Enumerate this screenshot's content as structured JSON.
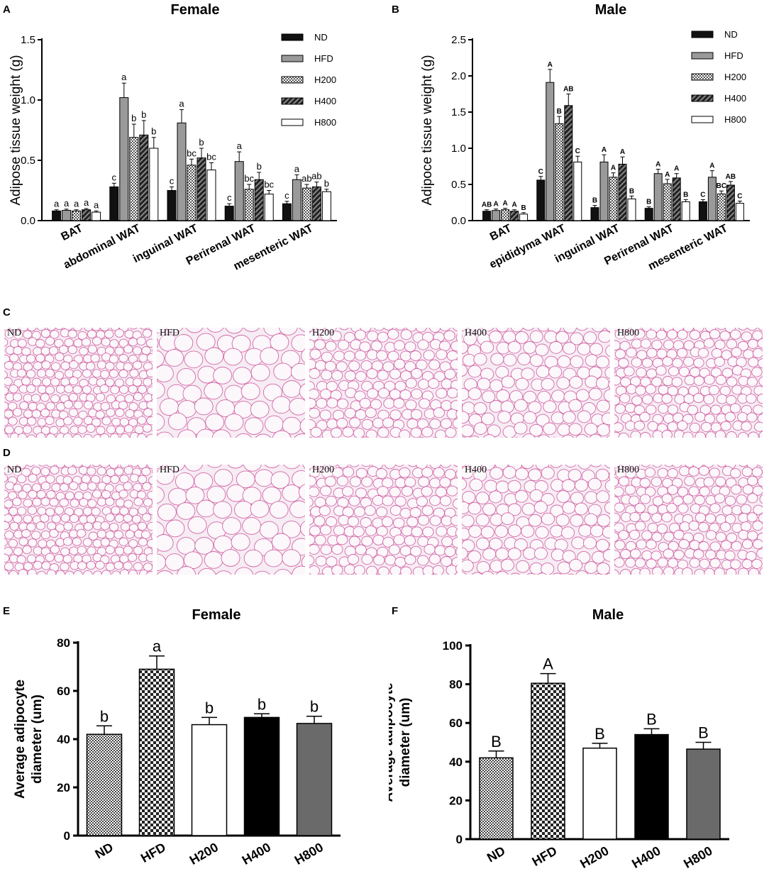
{
  "panels": {
    "A": "A",
    "B": "B",
    "C": "C",
    "D": "D",
    "E": "E",
    "F": "F"
  },
  "colors": {
    "ND": "#111111",
    "HFD": "#9a9a9a",
    "H200": "#7a7a7a",
    "H400": "#333333",
    "H800": "#ffffff",
    "H800_EF": "#6a6a6a",
    "tissue_bg": "#f6ecf4",
    "tissue_stain": "#c83c8c"
  },
  "chart_data": [
    {
      "id": "A",
      "type": "bar",
      "title": "Female",
      "ylabel": "Adipose tissue weight (g)",
      "ylim": [
        0,
        1.5
      ],
      "yticks": [
        "0.0",
        "0.5",
        "1.0",
        "1.5"
      ],
      "categories": [
        "BAT",
        "abdominal WAT",
        "inguinal WAT",
        "Perirenal WAT",
        "mesenteric WAT"
      ],
      "legend": [
        "ND",
        "HFD",
        "H200",
        "H400",
        "H800"
      ],
      "series": [
        {
          "name": "ND",
          "values": [
            0.08,
            0.28,
            0.25,
            0.12,
            0.14
          ],
          "errors": [
            0.01,
            0.03,
            0.03,
            0.02,
            0.02
          ],
          "labels": [
            "a",
            "c",
            "c",
            "c",
            "c"
          ]
        },
        {
          "name": "HFD",
          "values": [
            0.085,
            1.02,
            0.81,
            0.49,
            0.34
          ],
          "errors": [
            0.01,
            0.12,
            0.11,
            0.08,
            0.04
          ],
          "labels": [
            "a",
            "a",
            "a",
            "a",
            "a"
          ]
        },
        {
          "name": "H200",
          "values": [
            0.08,
            0.69,
            0.46,
            0.26,
            0.27
          ],
          "errors": [
            0.01,
            0.11,
            0.05,
            0.04,
            0.03
          ],
          "labels": [
            "a",
            "b",
            "bc",
            "bc",
            "ab"
          ]
        },
        {
          "name": "H400",
          "values": [
            0.09,
            0.71,
            0.52,
            0.34,
            0.28
          ],
          "errors": [
            0.01,
            0.12,
            0.08,
            0.06,
            0.04
          ],
          "labels": [
            "a",
            "b",
            "b",
            "b",
            "ab"
          ]
        },
        {
          "name": "H800",
          "values": [
            0.07,
            0.6,
            0.42,
            0.22,
            0.24
          ],
          "errors": [
            0.01,
            0.09,
            0.06,
            0.03,
            0.02
          ],
          "labels": [
            "a",
            "b",
            "bc",
            "bc",
            "b"
          ]
        }
      ]
    },
    {
      "id": "B",
      "type": "bar",
      "title": "Male",
      "ylabel": "Adipoce tissue weight (g)",
      "ylim": [
        0,
        2.5
      ],
      "yticks": [
        "0.0",
        "0.5",
        "1.0",
        "1.5",
        "2.0",
        "2.5"
      ],
      "categories": [
        "BAT",
        "epididyma WAT",
        "inguinal WAT",
        "Perirenal WAT",
        "mesenteric WAT"
      ],
      "legend": [
        "ND",
        "HFD",
        "H200",
        "H400",
        "H800"
      ],
      "series": [
        {
          "name": "ND",
          "values": [
            0.13,
            0.56,
            0.18,
            0.17,
            0.26
          ],
          "errors": [
            0.02,
            0.05,
            0.03,
            0.02,
            0.03
          ],
          "labels": [
            "AB",
            "C",
            "B",
            "B",
            "C"
          ]
        },
        {
          "name": "HFD",
          "values": [
            0.14,
            1.91,
            0.81,
            0.65,
            0.6
          ],
          "errors": [
            0.02,
            0.18,
            0.1,
            0.06,
            0.09
          ],
          "labels": [
            "A",
            "A",
            "A",
            "A",
            "A"
          ]
        },
        {
          "name": "H200",
          "values": [
            0.15,
            1.34,
            0.6,
            0.51,
            0.37
          ],
          "errors": [
            0.02,
            0.1,
            0.06,
            0.06,
            0.04
          ],
          "labels": [
            "A",
            "B",
            "A",
            "A",
            "BC"
          ]
        },
        {
          "name": "H400",
          "values": [
            0.13,
            1.59,
            0.78,
            0.59,
            0.49
          ],
          "errors": [
            0.02,
            0.16,
            0.1,
            0.06,
            0.05
          ],
          "labels": [
            "A",
            "AB",
            "A",
            "A",
            "AB"
          ]
        },
        {
          "name": "H800",
          "values": [
            0.09,
            0.81,
            0.3,
            0.26,
            0.24
          ],
          "errors": [
            0.02,
            0.08,
            0.04,
            0.03,
            0.03
          ],
          "labels": [
            "B",
            "C",
            "B",
            "B",
            "C"
          ]
        }
      ]
    },
    {
      "id": "E",
      "type": "bar",
      "title": "Female",
      "ylabel": "Average adipocyte diameter (um)",
      "ylim": [
        0,
        80
      ],
      "yticks": [
        "0",
        "20",
        "40",
        "60",
        "80"
      ],
      "categories": [
        "ND",
        "HFD",
        "H200",
        "H400",
        "H800"
      ],
      "values": [
        42,
        69,
        46,
        49,
        46.5
      ],
      "errors": [
        3.5,
        5.5,
        3,
        1.5,
        3
      ],
      "labels": [
        "b",
        "a",
        "b",
        "b",
        "b"
      ]
    },
    {
      "id": "F",
      "type": "bar",
      "title": "Male",
      "ylabel": "Average adipocyte diameter (um)",
      "ylim": [
        0,
        100
      ],
      "yticks": [
        "0",
        "20",
        "40",
        "60",
        "80",
        "100"
      ],
      "categories": [
        "ND",
        "HFD",
        "H200",
        "H400",
        "H800"
      ],
      "values": [
        42,
        80.5,
        47,
        54,
        46.5
      ],
      "errors": [
        3.5,
        5,
        2.5,
        3,
        3.5
      ],
      "labels": [
        "B",
        "A",
        "B",
        "B",
        "B"
      ]
    }
  ],
  "micrographs": {
    "C": [
      "ND",
      "HFD",
      "H200",
      "H400",
      "H800"
    ],
    "D": [
      "ND",
      "HFD",
      "H200",
      "H400",
      "H800"
    ]
  }
}
